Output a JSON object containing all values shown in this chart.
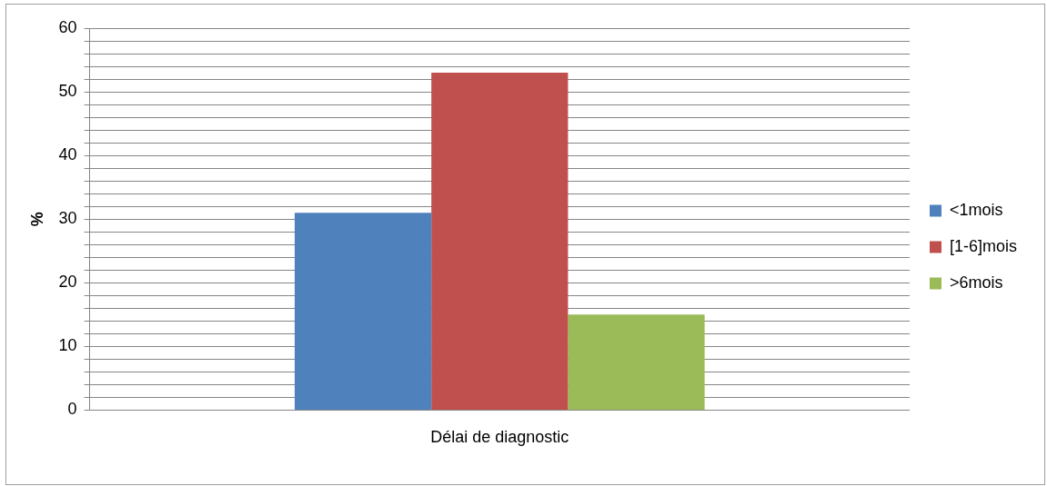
{
  "chart_data": {
    "type": "bar",
    "categories": [
      "Délai de diagnostic"
    ],
    "ylabel": "%",
    "series": [
      {
        "name": "<1mois",
        "color": "#4f81bd",
        "values": [
          31
        ]
      },
      {
        "name": "[1-6]mois",
        "color": "#c0504d",
        "values": [
          53
        ]
      },
      {
        "name": ">6mois",
        "color": "#9bbb59",
        "values": [
          15
        ]
      }
    ],
    "ylim": [
      0,
      60
    ],
    "yticks": [
      0,
      {
        "value": 2,
        "label": null
      },
      {
        "value": 4,
        "label": null
      },
      {
        "value": 6,
        "label": null
      },
      {
        "value": 8,
        "label": null
      },
      10,
      {
        "value": 12,
        "label": null
      },
      {
        "value": 14,
        "label": null
      },
      {
        "value": 16,
        "label": null
      },
      {
        "value": 18,
        "label": null
      },
      20,
      {
        "value": 22,
        "label": null
      },
      {
        "value": 24,
        "label": null
      },
      {
        "value": 26,
        "label": null
      },
      {
        "value": 28,
        "label": null
      },
      30,
      {
        "value": 32,
        "label": null
      },
      {
        "value": 34,
        "label": null
      },
      {
        "value": 36,
        "label": null
      },
      {
        "value": 38,
        "label": null
      },
      40,
      {
        "value": 42,
        "label": null
      },
      {
        "value": 44,
        "label": null
      },
      {
        "value": 46,
        "label": null
      },
      {
        "value": 48,
        "label": null
      },
      50,
      {
        "value": 52,
        "label": null
      },
      {
        "value": 54,
        "label": null
      },
      {
        "value": 56,
        "label": null
      },
      {
        "value": 58,
        "label": null
      },
      60
    ],
    "grid": "y",
    "legend": "right"
  }
}
